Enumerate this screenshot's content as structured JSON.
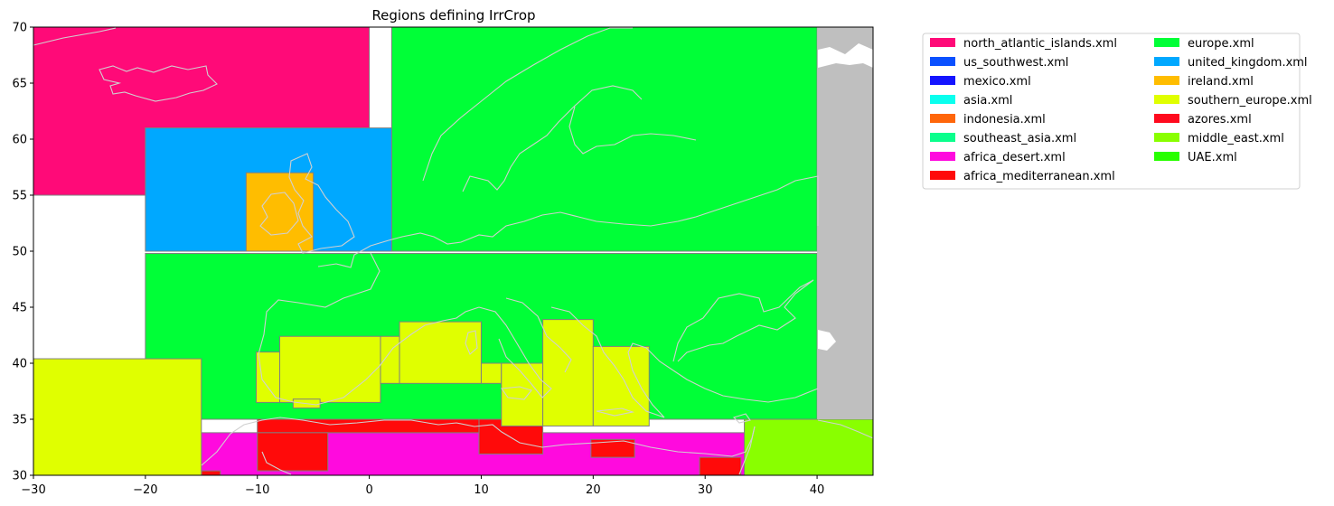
{
  "chart_data": {
    "type": "map",
    "title": "Regions defining IrrCrop",
    "xlabel": "",
    "ylabel": "",
    "xlim": [
      -30,
      45
    ],
    "ylim": [
      30,
      70
    ],
    "xticks": [
      -30,
      -20,
      -10,
      0,
      10,
      20,
      30,
      40
    ],
    "yticks": [
      30,
      35,
      40,
      45,
      50,
      55,
      60,
      65,
      70
    ],
    "grid": false,
    "legend_position": "outside-right",
    "legend": [
      {
        "name": "north_atlantic_islands.xml",
        "color": "#ff0a78"
      },
      {
        "name": "us_southwest.xml",
        "color": "#0a50ff"
      },
      {
        "name": "mexico.xml",
        "color": "#1414ff"
      },
      {
        "name": "asia.xml",
        "color": "#0affee"
      },
      {
        "name": "indonesia.xml",
        "color": "#ff660a"
      },
      {
        "name": "southeast_asia.xml",
        "color": "#0aff8c"
      },
      {
        "name": "africa_desert.xml",
        "color": "#ff0ade"
      },
      {
        "name": "africa_mediterranean.xml",
        "color": "#ff0a0a"
      },
      {
        "name": "europe.xml",
        "color": "#00ff37"
      },
      {
        "name": "united_kingdom.xml",
        "color": "#00a8ff"
      },
      {
        "name": "ireland.xml",
        "color": "#ffbd00"
      },
      {
        "name": "southern_europe.xml",
        "color": "#e0ff00"
      },
      {
        "name": "azores.xml",
        "color": "#ff0a1e"
      },
      {
        "name": "middle_east.xml",
        "color": "#89ff00"
      },
      {
        "name": "UAE.xml",
        "color": "#28ff00"
      }
    ],
    "regions": [
      {
        "name": "north_atlantic_islands",
        "color": "#ff0a78",
        "x0": -30,
        "x1": 0,
        "y0": 55,
        "y1": 70
      },
      {
        "name": "north_atlantic_islands",
        "color": "#ff0a78",
        "x0": -20,
        "x1": 0,
        "y0": 55,
        "y1": 61
      },
      {
        "name": "europe_north",
        "color": "#00ff37",
        "x0": 2,
        "x1": 40,
        "y0": 50,
        "y1": 70
      },
      {
        "name": "united_kingdom",
        "color": "#00a8ff",
        "x0": -20,
        "x1": 2,
        "y0": 50,
        "y1": 61
      },
      {
        "name": "ireland",
        "color": "#ffbd00",
        "x0": -11,
        "x1": -5,
        "y0": 50,
        "y1": 57
      },
      {
        "name": "europe_south",
        "color": "#00ff37",
        "x0": -20,
        "x1": 40,
        "y0": 35,
        "y1": 49.8
      },
      {
        "name": "africa_desert",
        "color": "#ff0ade",
        "x0": -15,
        "x1": 33.5,
        "y0": 30,
        "y1": 33.8
      },
      {
        "name": "africa_mediterranean",
        "color": "#ff0a0a",
        "x0": -10,
        "x1": 10,
        "y0": 33.8,
        "y1": 35
      },
      {
        "name": "africa_mediterranean",
        "color": "#ff0a0a",
        "x0": -10,
        "x1": -3.7,
        "y0": 30.4,
        "y1": 33.8
      },
      {
        "name": "africa_mediterranean",
        "color": "#ff0a0a",
        "x0": 9.8,
        "x1": 15.5,
        "y0": 31.9,
        "y1": 35
      },
      {
        "name": "africa_mediterranean",
        "color": "#ff0a0a",
        "x0": 19.8,
        "x1": 23.7,
        "y0": 31.6,
        "y1": 33.2
      },
      {
        "name": "africa_mediterranean",
        "color": "#ff0a0a",
        "x0": 29.5,
        "x1": 33.2,
        "y0": 30,
        "y1": 31.6
      },
      {
        "name": "africa_mediterranean",
        "color": "#ff0a0a",
        "x0": -15,
        "x1": -13.3,
        "y0": 30,
        "y1": 30.4
      },
      {
        "name": "middle_east",
        "color": "#89ff00",
        "x0": 33.5,
        "x1": 45,
        "y0": 30,
        "y1": 35
      },
      {
        "name": "southern_europe",
        "color": "#e0ff00",
        "x0": -30,
        "x1": -15,
        "y0": 30,
        "y1": 40.4
      },
      {
        "name": "southern_europe",
        "color": "#e0ff00",
        "x0": -10.1,
        "x1": -8,
        "y0": 36.5,
        "y1": 41
      },
      {
        "name": "southern_europe",
        "color": "#e0ff00",
        "x0": -8,
        "x1": 1,
        "y0": 36.5,
        "y1": 42.4
      },
      {
        "name": "southern_europe",
        "color": "#e0ff00",
        "x0": -6.8,
        "x1": -4.4,
        "y0": 36,
        "y1": 36.8
      },
      {
        "name": "southern_europe",
        "color": "#e0ff00",
        "x0": 1,
        "x1": 2.7,
        "y0": 38.2,
        "y1": 42.4
      },
      {
        "name": "southern_europe",
        "color": "#e0ff00",
        "x0": 2.7,
        "x1": 10,
        "y0": 38.2,
        "y1": 43.7
      },
      {
        "name": "southern_europe",
        "color": "#e0ff00",
        "x0": 10,
        "x1": 11.8,
        "y0": 38.2,
        "y1": 40
      },
      {
        "name": "southern_europe",
        "color": "#e0ff00",
        "x0": 11.8,
        "x1": 15.5,
        "y0": 34.4,
        "y1": 40
      },
      {
        "name": "southern_europe",
        "color": "#e0ff00",
        "x0": 15.5,
        "x1": 20,
        "y0": 34.4,
        "y1": 43.9
      },
      {
        "name": "southern_europe",
        "color": "#e0ff00",
        "x0": 20,
        "x1": 25,
        "y0": 34.4,
        "y1": 41.5
      },
      {
        "name": "land_outside",
        "color": "#bfbfbf",
        "x0": 40,
        "x1": 45,
        "y0": 35,
        "y1": 70
      }
    ]
  }
}
